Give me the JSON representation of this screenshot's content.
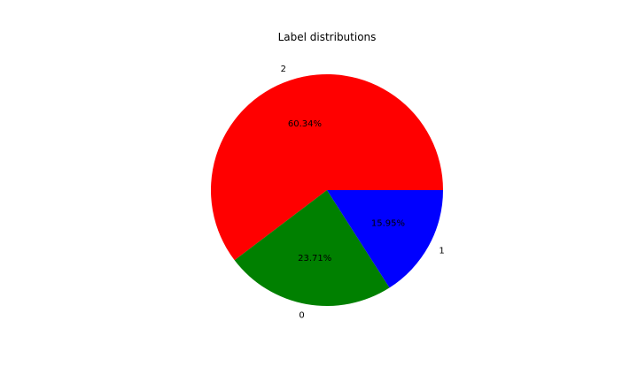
{
  "chart_data": {
    "type": "pie",
    "title": "Label distributions",
    "slices": [
      {
        "label": "2",
        "value": 60.34,
        "pct_label": "60.34%",
        "color": "#ff0000"
      },
      {
        "label": "0",
        "value": 23.71,
        "pct_label": "23.71%",
        "color": "#008000"
      },
      {
        "label": "1",
        "value": 15.95,
        "pct_label": "15.95%",
        "color": "#0000ff"
      }
    ],
    "start_angle_deg": 0,
    "direction": "counterclockwise",
    "legend": "none"
  }
}
